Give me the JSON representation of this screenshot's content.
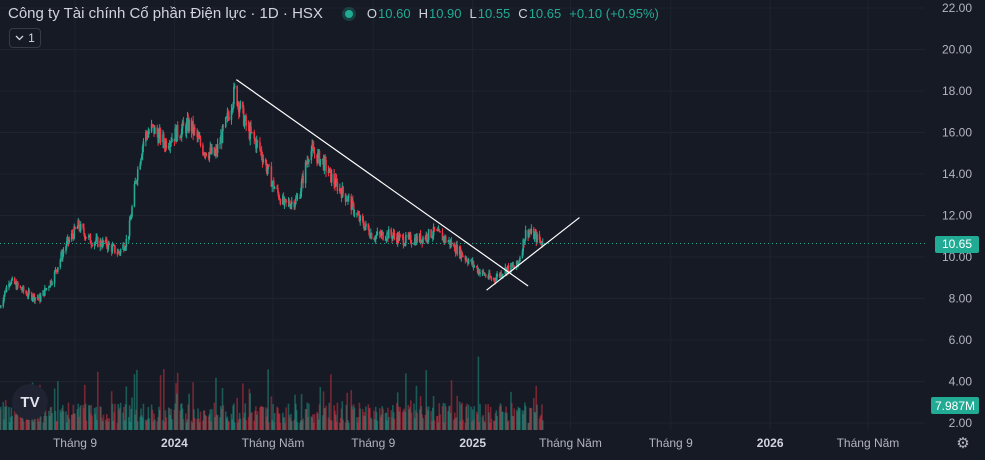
{
  "header": {
    "title": "Công ty Tài chính Cổ phần Điện lực · 1D · HSX",
    "o_label": "O",
    "o_value": "10.60",
    "h_label": "H",
    "h_value": "10.90",
    "l_label": "L",
    "l_value": "10.55",
    "c_label": "C",
    "c_value": "10.65",
    "change": "+0.10 (+0.95%)",
    "status_color": "#22ab94"
  },
  "interval_button": {
    "label": "1",
    "icon": "chevron-down-icon"
  },
  "logo": {
    "label": "TV",
    "icon": "tradingview-logo-icon"
  },
  "settings": {
    "icon": "gear-icon"
  },
  "price_label": {
    "text": "10.65",
    "value": 10.65,
    "color": "#22ab94"
  },
  "volume_label": {
    "text": "7.987M",
    "color": "#22ab94"
  },
  "colors": {
    "up": "#22ab94",
    "down": "#f23645",
    "bg": "#161a25",
    "grid": "#1f2330",
    "trendline": "#ffffff"
  },
  "chart_data": {
    "type": "candlestick",
    "ylim": [
      2,
      22
    ],
    "y_ticks": [
      "22.00",
      "20.00",
      "18.00",
      "16.00",
      "14.00",
      "12.00",
      "10.00",
      "8.00",
      "6.00",
      "4.00",
      "2.00"
    ],
    "y_tick_values": [
      22,
      20,
      18,
      16,
      14,
      12,
      10,
      8,
      6,
      4,
      2
    ],
    "x_ticks": [
      "Tháng 9",
      "2024",
      "Tháng Năm",
      "Tháng 9",
      "2025",
      "Tháng Năm",
      "Tháng 9",
      "2026",
      "Tháng Năm"
    ],
    "x_tick_dates": [
      "2023-09-01",
      "2024-01-01",
      "2024-05-01",
      "2024-09-01",
      "2025-01-01",
      "2025-05-01",
      "2025-09-01",
      "2026-01-01",
      "2026-05-01"
    ],
    "x_range": [
      "2023-06-01",
      "2026-07-10"
    ],
    "price_path": [
      [
        "2023-06-01",
        7.6
      ],
      [
        "2023-06-12",
        8.9
      ],
      [
        "2023-07-05",
        8.2
      ],
      [
        "2023-07-20",
        8.0
      ],
      [
        "2023-08-05",
        9.0
      ],
      [
        "2023-08-20",
        10.5
      ],
      [
        "2023-09-05",
        11.5
      ],
      [
        "2023-09-20",
        10.8
      ],
      [
        "2023-10-10",
        10.6
      ],
      [
        "2023-10-25",
        10.2
      ],
      [
        "2023-11-05",
        10.9
      ],
      [
        "2023-11-15",
        13.8
      ],
      [
        "2023-11-25",
        15.8
      ],
      [
        "2023-12-05",
        16.2
      ],
      [
        "2023-12-20",
        15.5
      ],
      [
        "2024-01-05",
        16.0
      ],
      [
        "2024-01-20",
        16.4
      ],
      [
        "2024-02-05",
        15.2
      ],
      [
        "2024-02-20",
        14.9
      ],
      [
        "2024-03-05",
        16.5
      ],
      [
        "2024-03-15",
        18.0
      ],
      [
        "2024-03-30",
        16.2
      ],
      [
        "2024-04-15",
        15.2
      ],
      [
        "2024-05-01",
        13.5
      ],
      [
        "2024-05-15",
        12.5
      ],
      [
        "2024-06-01",
        12.8
      ],
      [
        "2024-06-15",
        15.2
      ],
      [
        "2024-07-01",
        14.6
      ],
      [
        "2024-07-15",
        13.6
      ],
      [
        "2024-08-01",
        12.8
      ],
      [
        "2024-08-15",
        11.8
      ],
      [
        "2024-09-01",
        11.0
      ],
      [
        "2024-09-20",
        11.1
      ],
      [
        "2024-10-10",
        10.8
      ],
      [
        "2024-10-30",
        10.9
      ],
      [
        "2024-11-15",
        11.2
      ],
      [
        "2024-12-01",
        10.8
      ],
      [
        "2024-12-20",
        10.1
      ],
      [
        "2025-01-10",
        9.3
      ],
      [
        "2025-01-25",
        8.9
      ],
      [
        "2025-02-10",
        9.4
      ],
      [
        "2025-02-25",
        9.6
      ],
      [
        "2025-03-08",
        11.3
      ],
      [
        "2025-03-18",
        11.0
      ],
      [
        "2025-03-28",
        10.65
      ]
    ],
    "last": {
      "open": 10.6,
      "high": 10.9,
      "low": 10.55,
      "close": 10.65
    },
    "trendlines": [
      {
        "x1": "2024-03-17",
        "y1": 18.55,
        "x2": "2025-03-10",
        "y2": 8.6
      },
      {
        "x1": "2025-01-18",
        "y1": 8.4,
        "x2": "2025-05-12",
        "y2": 11.9
      }
    ],
    "volume_max_millions": 32
  }
}
